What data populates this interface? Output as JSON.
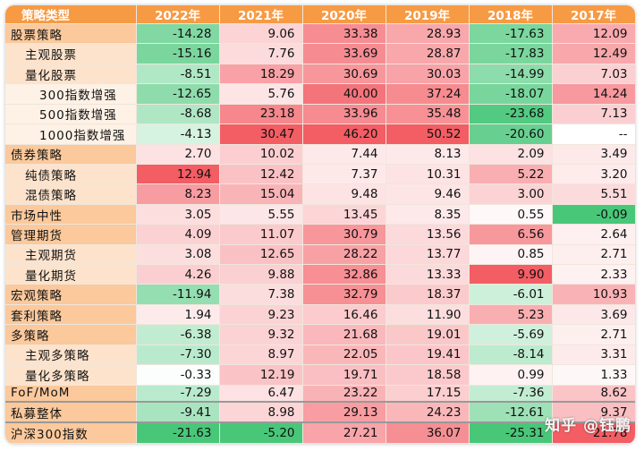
{
  "table": {
    "header": [
      "策略类型",
      "2022年",
      "2021年",
      "2020年",
      "2019年",
      "2018年",
      "2017年"
    ],
    "rows": [
      {
        "name": "股票策略",
        "level": 0,
        "values": [
          "-14.28",
          "9.06",
          "33.38",
          "28.93",
          "-17.63",
          "12.09"
        ]
      },
      {
        "name": "主观股票",
        "level": 1,
        "values": [
          "-15.16",
          "7.76",
          "33.69",
          "28.87",
          "-17.83",
          "12.49"
        ]
      },
      {
        "name": "量化股票",
        "level": 1,
        "values": [
          "-8.51",
          "18.29",
          "30.69",
          "30.03",
          "-14.99",
          "7.03"
        ]
      },
      {
        "name": "300指数增强",
        "level": 2,
        "values": [
          "-12.65",
          "5.76",
          "40.00",
          "37.24",
          "-18.07",
          "14.24"
        ]
      },
      {
        "name": "500指数增强",
        "level": 2,
        "values": [
          "-8.68",
          "23.18",
          "33.96",
          "35.48",
          "-23.68",
          "7.13"
        ]
      },
      {
        "name": "1000指数增强",
        "level": 2,
        "values": [
          "-4.13",
          "30.47",
          "46.20",
          "50.52",
          "-20.60",
          "--"
        ]
      },
      {
        "name": "债券策略",
        "level": 0,
        "values": [
          "2.70",
          "10.02",
          "7.44",
          "8.13",
          "2.09",
          "3.49"
        ]
      },
      {
        "name": "纯债策略",
        "level": 1,
        "values": [
          "12.94",
          "12.42",
          "7.37",
          "10.31",
          "5.22",
          "3.20"
        ]
      },
      {
        "name": "混债策略",
        "level": 1,
        "values": [
          "8.23",
          "15.04",
          "9.48",
          "9.46",
          "3.00",
          "5.51"
        ]
      },
      {
        "name": "市场中性",
        "level": 0,
        "values": [
          "3.05",
          "5.55",
          "13.45",
          "8.35",
          "0.55",
          "-0.09"
        ]
      },
      {
        "name": "管理期货",
        "level": 0,
        "values": [
          "4.09",
          "11.07",
          "30.79",
          "13.56",
          "6.56",
          "2.64"
        ]
      },
      {
        "name": "主观期货",
        "level": 1,
        "values": [
          "3.08",
          "12.65",
          "28.22",
          "13.77",
          "0.85",
          "2.71"
        ]
      },
      {
        "name": "量化期货",
        "level": 1,
        "values": [
          "4.26",
          "9.88",
          "32.86",
          "13.33",
          "9.90",
          "2.33"
        ]
      },
      {
        "name": "宏观策略",
        "level": 0,
        "values": [
          "-11.94",
          "7.38",
          "32.79",
          "18.37",
          "-6.01",
          "10.93"
        ]
      },
      {
        "name": "套利策略",
        "level": 0,
        "values": [
          "1.94",
          "9.23",
          "16.46",
          "11.90",
          "5.23",
          "3.69"
        ]
      },
      {
        "name": "多策略",
        "level": 0,
        "values": [
          "-6.38",
          "9.32",
          "21.68",
          "19.01",
          "-5.69",
          "2.71"
        ]
      },
      {
        "name": "主观多策略",
        "level": 1,
        "values": [
          "-7.30",
          "8.97",
          "22.05",
          "19.41",
          "-8.14",
          "3.31"
        ]
      },
      {
        "name": "量化多策略",
        "level": 1,
        "values": [
          "-0.33",
          "12.19",
          "19.71",
          "18.58",
          "0.99",
          "1.33"
        ]
      },
      {
        "name": "FoF/MoM",
        "level": 0,
        "values": [
          "-7.29",
          "6.47",
          "23.22",
          "17.15",
          "-7.36",
          "8.62"
        ]
      },
      {
        "name": "私募整体",
        "level": 0,
        "values": [
          "-9.41",
          "8.98",
          "29.13",
          "24.23",
          "-12.61",
          "9.37"
        ]
      },
      {
        "name": "沪深300指数",
        "level": 0,
        "values": [
          "-21.63",
          "-5.20",
          "27.21",
          "36.07",
          "-25.31",
          "21.78"
        ]
      }
    ]
  },
  "colors": {
    "header_bg": "#f79a44",
    "level0_bg": "#fbc99c",
    "level1_bg": "#fde3cc",
    "level2_bg": "#fef1e5",
    "positive_max": "#f2545c",
    "negative_max": "#3fc472",
    "neutral": "#ffffff"
  },
  "watermark": "知乎 @钰鹏"
}
